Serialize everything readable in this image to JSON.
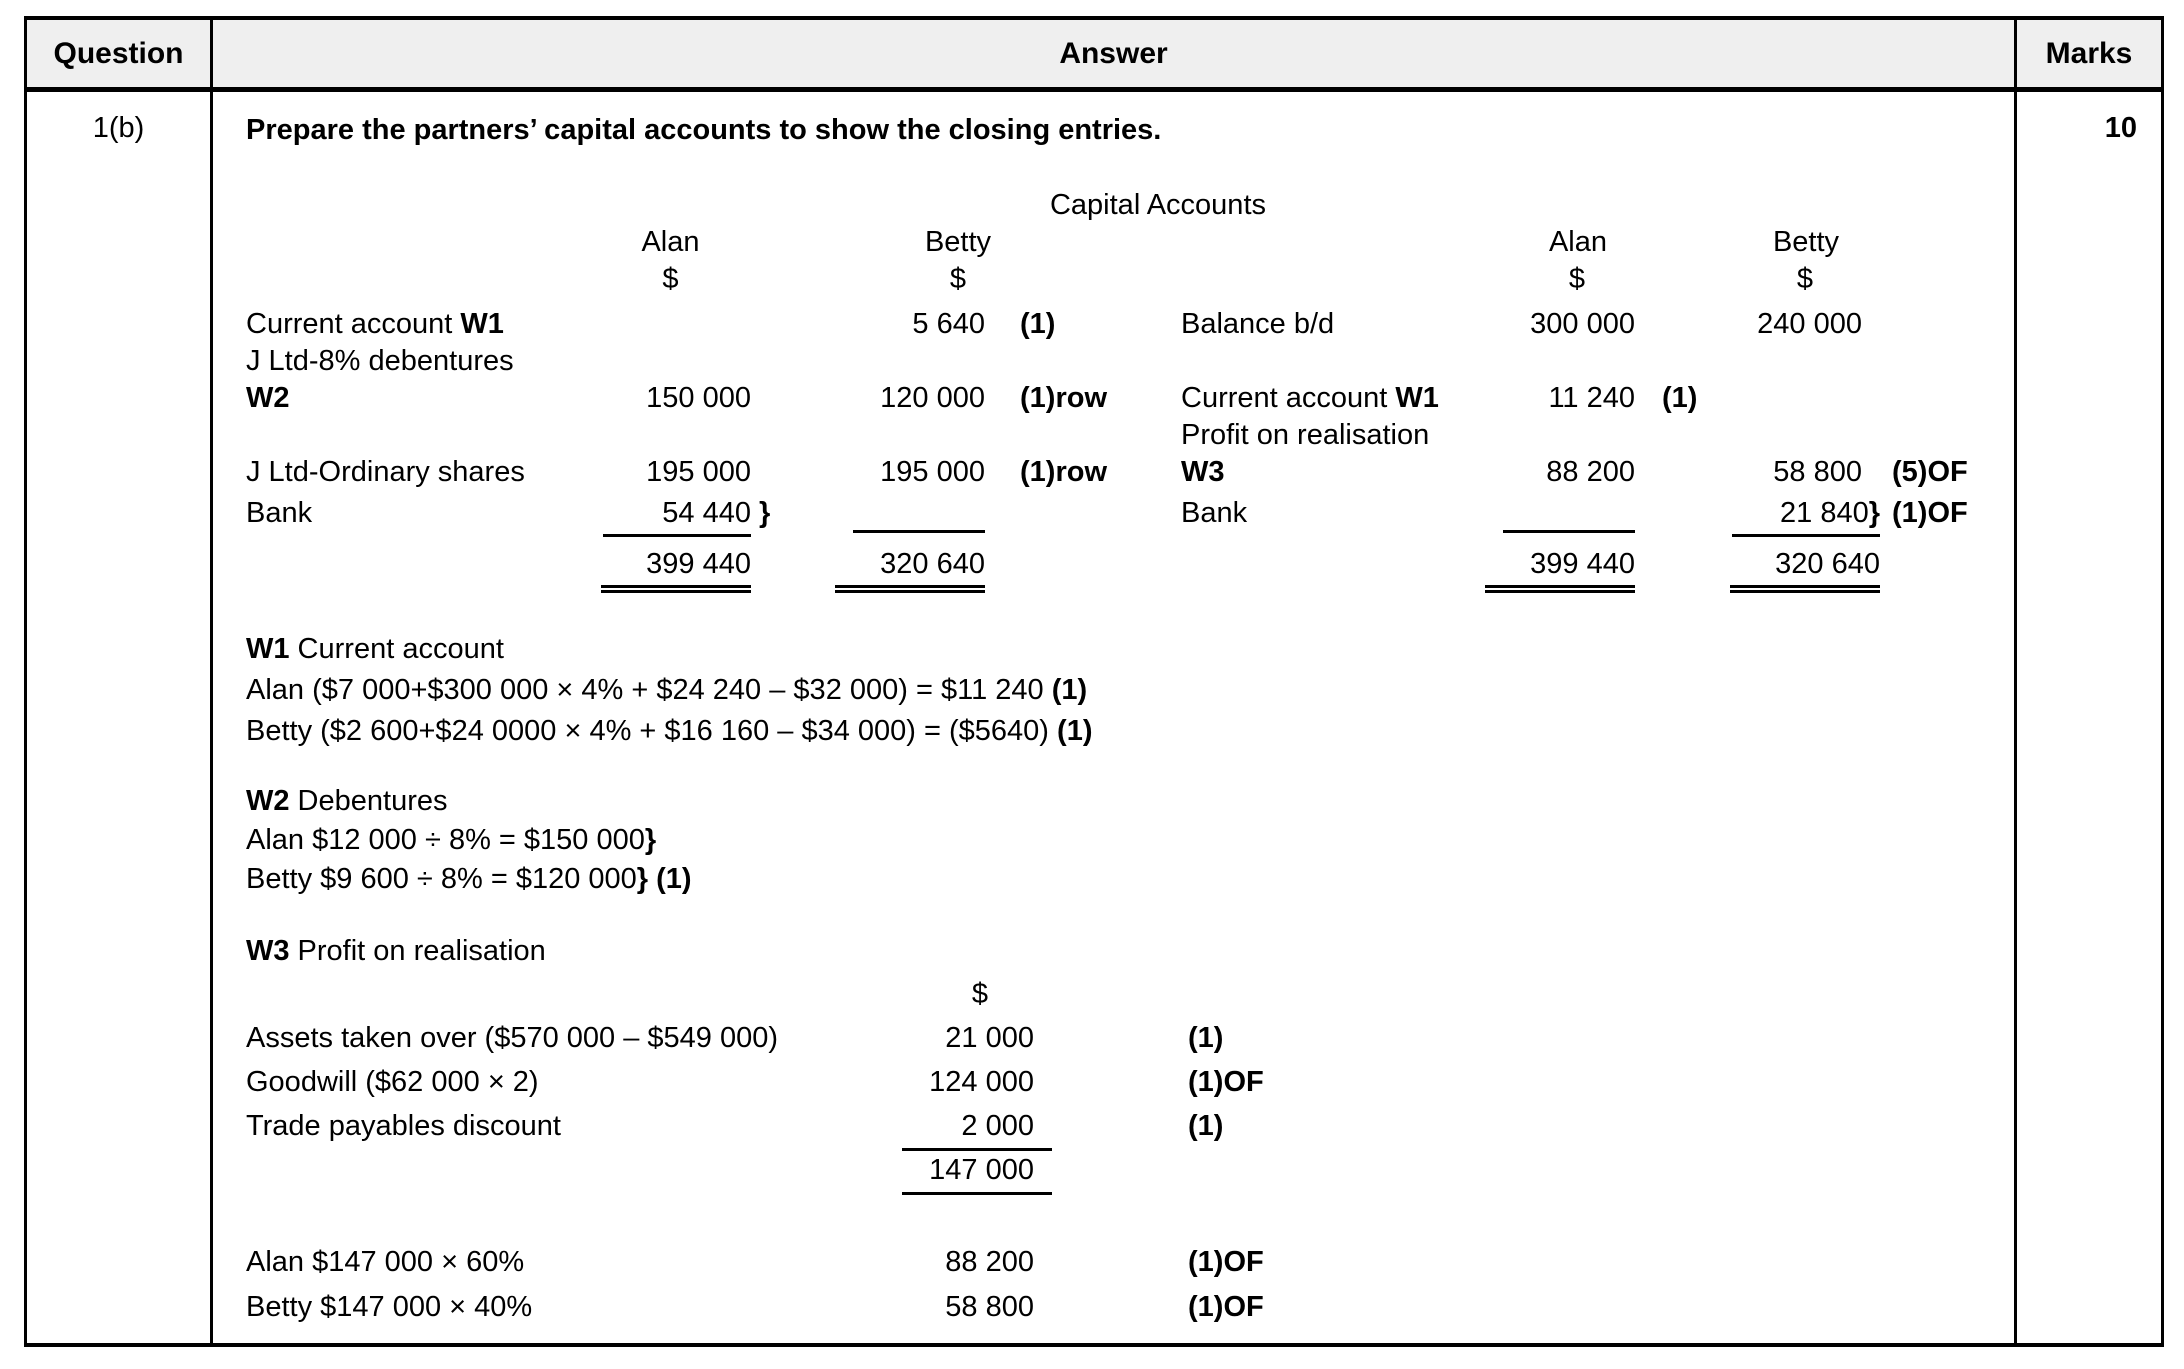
{
  "table": {
    "headers": {
      "question": "Question",
      "answer": "Answer",
      "marks": "Marks"
    },
    "question_id": "1(b)",
    "marks_value": "10"
  },
  "answer": {
    "prompt": "Prepare the partners’ capital accounts to show the closing entries.",
    "ledger": {
      "title": "Capital Accounts",
      "name_alan": "Alan",
      "name_betty": "Betty",
      "currency": "$",
      "rows": {
        "r1": {
          "debit_label": "Current account ",
          "debit_label_bold": "W1",
          "betty": "5 640",
          "note": "(1)",
          "credit_label": "Balance b/d",
          "c_alan": "300 000",
          "c_betty": "240 000"
        },
        "r2": {
          "debit_label": "J Ltd-8% debentures"
        },
        "r3": {
          "debit_label_bold": "W2",
          "alan": "150 000",
          "betty": "120 000",
          "note": "(1)row",
          "credit_label": "Current account ",
          "credit_label_bold": "W1",
          "c_alan": "11 240",
          "c_note": "(1)"
        },
        "r4": {
          "credit_label": "Profit on realisation"
        },
        "r5": {
          "debit_label": "J Ltd-Ordinary shares",
          "alan": "195 000",
          "betty": "195 000",
          "note": "(1)row",
          "credit_label_bold": "W3",
          "c_alan": "88 200",
          "c_betty": "58 800",
          "c_note2": "(5)OF"
        },
        "r6": {
          "debit_label": "Bank",
          "alan": "54 440",
          "alan_brace": "}",
          "credit_label": "Bank",
          "c_betty": "21 840",
          "c_betty_brace": "}",
          "c_note2": "(1)OF"
        },
        "totals": {
          "alan": "399 440",
          "betty": "320 640",
          "c_alan": "399 440",
          "c_betty": "320 640"
        }
      }
    },
    "w1": {
      "heading_bold": "W1",
      "heading": " Current account",
      "line_alan": "Alan ($7 000+$300 000 × 4% + $24 240 – $32 000) = $11 240 ",
      "line_alan_mark": "(1)",
      "line_betty": "Betty ($2 600+$24 0000 × 4% + $16 160 – $34 000) = ($5640) ",
      "line_betty_mark": "(1)"
    },
    "w2": {
      "heading_bold": "W2",
      "heading": " Debentures",
      "line_alan": "Alan $12 000 ÷ 8% = $150 000",
      "line_alan_brace": "}",
      "line_betty": "Betty $9 600 ÷ 8% = $120 000",
      "line_betty_brace": "} (1)"
    },
    "w3": {
      "heading_bold": "W3",
      "heading": " Profit on realisation",
      "currency": "$",
      "rows": [
        {
          "label": "Assets taken over ($570 000 – $549 000)",
          "value": "21 000",
          "note": "(1)"
        },
        {
          "label": "Goodwill ($62 000 × 2)",
          "value": "124 000",
          "note": "(1)OF"
        },
        {
          "label": "Trade payables discount",
          "value": "2 000",
          "note": "(1)"
        }
      ],
      "total": "147 000",
      "split_rows": [
        {
          "label": "Alan $147 000 × 60%",
          "value": "88 200",
          "note": "(1)OF"
        },
        {
          "label": "Betty $147 000 × 40%",
          "value": "58 800",
          "note": "(1)OF"
        }
      ]
    }
  }
}
